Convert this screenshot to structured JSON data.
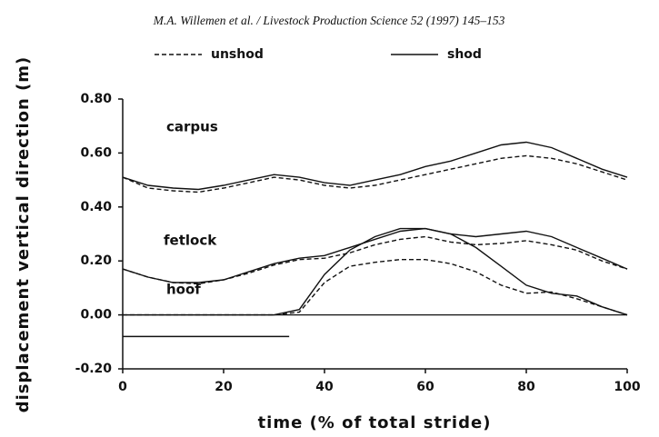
{
  "header": "M.A. Willemen et al. / Livestock Production Science 52 (1997) 145–153",
  "chart_data": {
    "type": "line",
    "xlabel": "time (% of total stride)",
    "ylabel": "displacement vertical direction (m)",
    "annotations": [
      "carpus",
      "fetlock",
      "hoof"
    ],
    "xlim": [
      0,
      100
    ],
    "xticks": [
      0,
      20,
      40,
      60,
      80,
      100
    ],
    "ylim": [
      -0.2,
      0.8
    ],
    "yticks": [
      {
        "value": -0.2,
        "label": "-0.20"
      },
      {
        "value": 0,
        "label": "0.00"
      },
      {
        "value": 0.2,
        "label": "0.20"
      },
      {
        "value": 0.4,
        "label": "0.40"
      },
      {
        "value": 0.6,
        "label": "0.60"
      },
      {
        "value": 0.8,
        "label": "0.80"
      }
    ],
    "x": [
      0,
      5,
      10,
      15,
      20,
      25,
      30,
      35,
      40,
      45,
      50,
      55,
      60,
      65,
      70,
      75,
      80,
      85,
      90,
      95,
      100
    ],
    "series": [
      {
        "name": "unshod",
        "style": "dashed",
        "color": "#111",
        "values": [
          0.51,
          0.47,
          0.46,
          0.455,
          0.47,
          0.49,
          0.51,
          0.5,
          0.48,
          0.47,
          0.48,
          0.5,
          0.52,
          0.54,
          0.56,
          0.58,
          0.59,
          0.58,
          0.56,
          0.53,
          0.5
        ]
      },
      {
        "name": "shod",
        "style": "solid",
        "color": "#111",
        "values": [
          0.51,
          0.48,
          0.47,
          0.465,
          0.48,
          0.5,
          0.52,
          0.51,
          0.49,
          0.48,
          0.5,
          0.52,
          0.55,
          0.57,
          0.6,
          0.63,
          0.64,
          0.62,
          0.58,
          0.54,
          0.51
        ]
      },
      {
        "name": "unshod",
        "style": "dashed",
        "color": "#111",
        "values": [
          0.17,
          0.14,
          0.12,
          0.115,
          0.13,
          0.155,
          0.185,
          0.205,
          0.21,
          0.23,
          0.26,
          0.28,
          0.29,
          0.27,
          0.26,
          0.265,
          0.275,
          0.26,
          0.24,
          0.2,
          0.17
        ]
      },
      {
        "name": "shod",
        "style": "solid",
        "color": "#111",
        "values": [
          0.17,
          0.14,
          0.12,
          0.12,
          0.13,
          0.16,
          0.19,
          0.21,
          0.22,
          0.25,
          0.28,
          0.31,
          0.32,
          0.3,
          0.29,
          0.3,
          0.31,
          0.29,
          0.25,
          0.21,
          0.17
        ]
      },
      {
        "name": "unshod",
        "style": "dashed",
        "color": "#111",
        "values": [
          0,
          0,
          0,
          0,
          0,
          0,
          0,
          0.01,
          0.12,
          0.18,
          0.195,
          0.205,
          0.205,
          0.19,
          0.16,
          0.11,
          0.08,
          0.085,
          0.06,
          0.03,
          0
        ]
      },
      {
        "name": "shod",
        "style": "solid",
        "color": "#111",
        "values": [
          0,
          0,
          0,
          0,
          0,
          0,
          0,
          0.02,
          0.15,
          0.24,
          0.29,
          0.32,
          0.32,
          0.3,
          0.25,
          0.18,
          0.11,
          0.08,
          0.07,
          0.03,
          0
        ]
      }
    ],
    "stance_bar": {
      "x": [
        0,
        33
      ],
      "y": -0.08
    }
  }
}
